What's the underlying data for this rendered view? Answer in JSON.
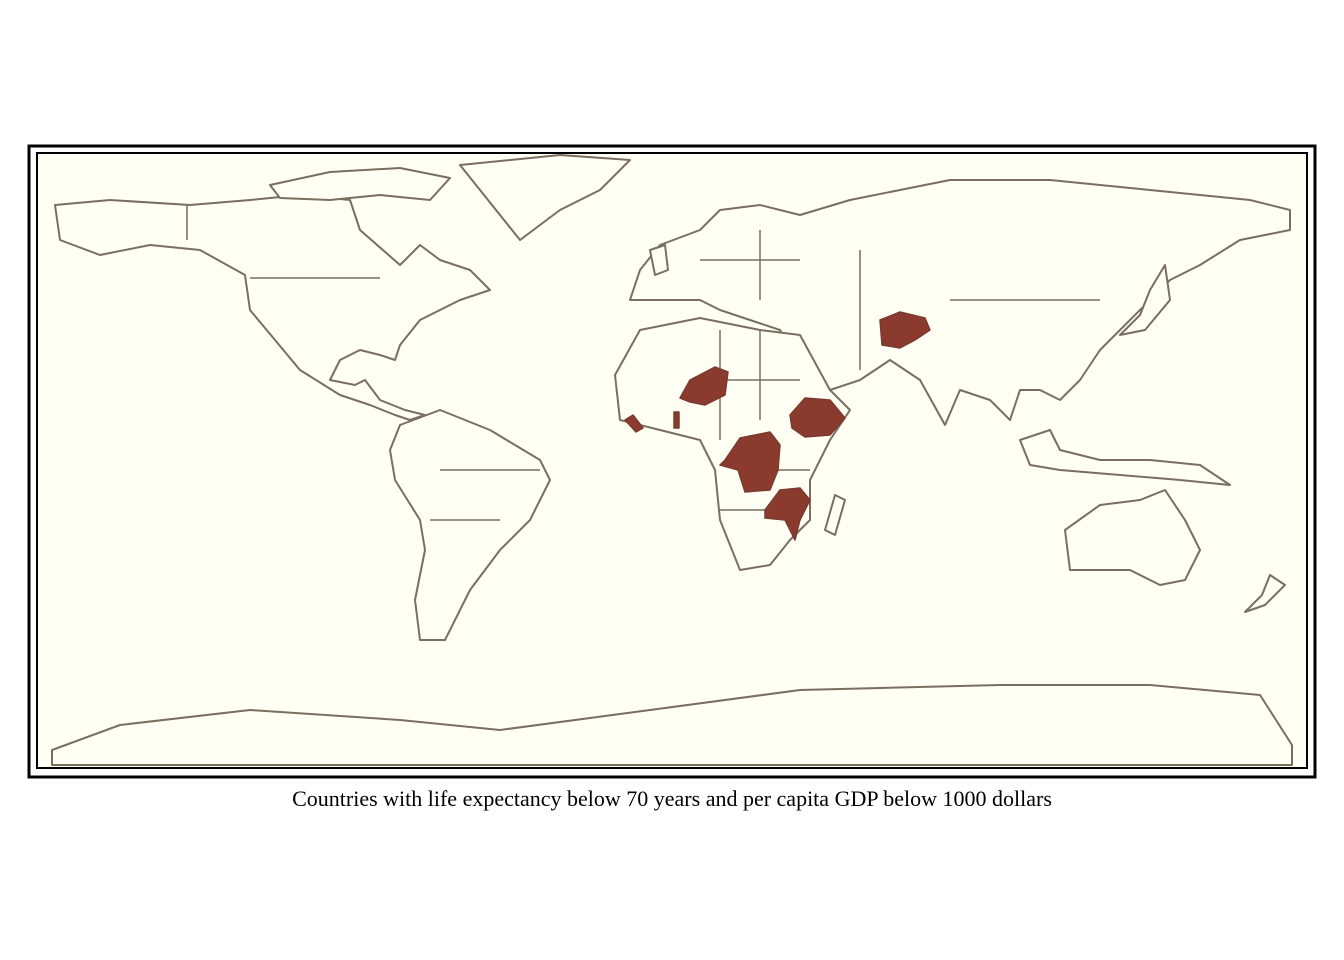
{
  "caption": "Countries with life expectancy below 70 years and per capita GDP below 1000 dollars"
}
